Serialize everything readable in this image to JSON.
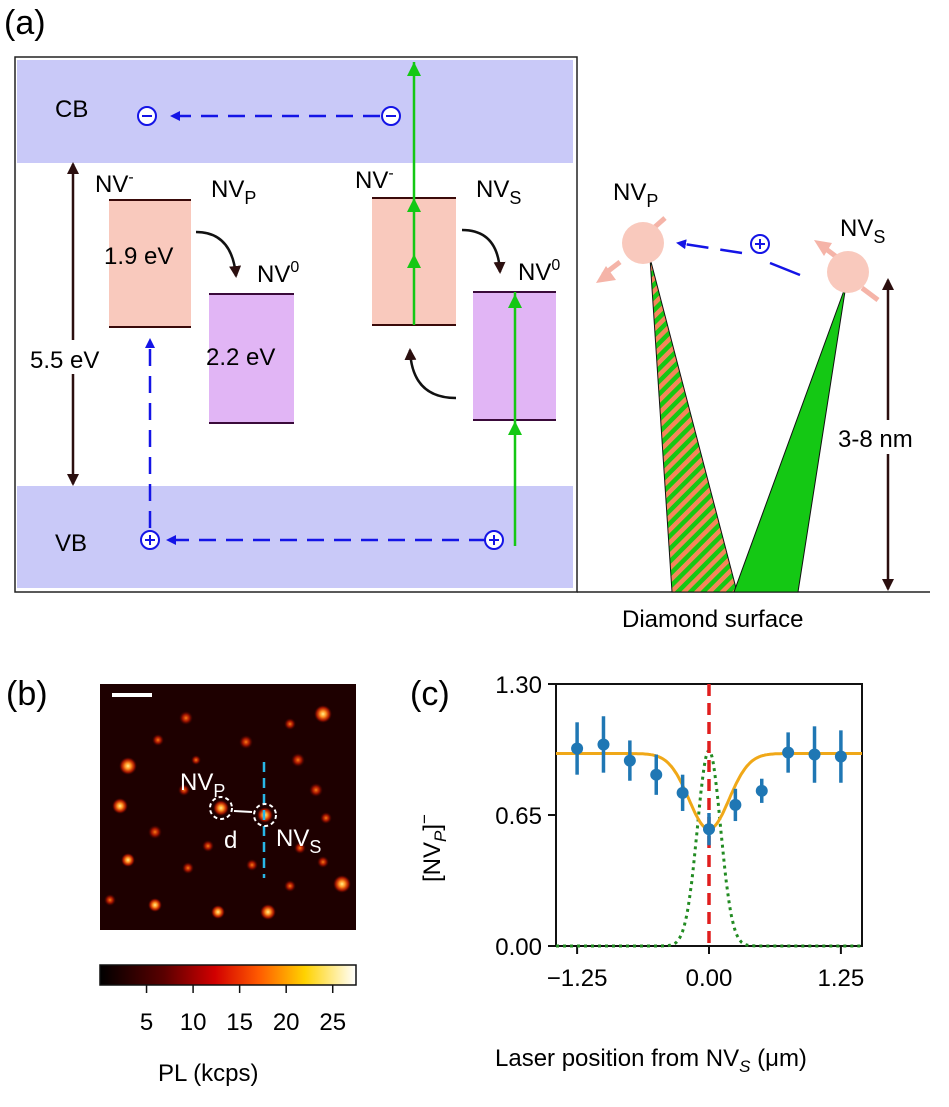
{
  "panel_a": {
    "label": "(a)",
    "cb": "CB",
    "vb": "VB",
    "nv_minus_1": "NV",
    "nv_minus_1_sup": "-",
    "nvp_base": "NV",
    "nvp_sub": "P",
    "e19": "1.9 eV",
    "nv0_1": "NV",
    "nv0_1_sup": "0",
    "e22": "2.2 eV",
    "e55": "5.5 eV",
    "nv_minus_2": "NV",
    "nv_minus_2_sup": "-",
    "nvs_base": "NV",
    "nvs_sub": "S",
    "nv0_2": "NV",
    "nv0_2_sup": "0",
    "right_nvp_base": "NV",
    "right_nvp_sub": "P",
    "right_nvs_base": "NV",
    "right_nvs_sub": "S",
    "depth": "3-8 nm",
    "surface": "Diamond surface",
    "colors": {
      "band": "#c9c9f8",
      "nv_minus": "#f9c9bd",
      "nv_zero": "#e1b5f5",
      "green": "#14c814",
      "blue": "#1414e6",
      "orange": "#f5a06e"
    }
  },
  "panel_b": {
    "label": "(b)",
    "nvp_base": "NV",
    "nvp_sub": "P",
    "d": "d",
    "nvs_base": "NV",
    "nvs_sub": "S",
    "colorbar_ticks": [
      "5",
      "10",
      "15",
      "20",
      "25"
    ],
    "colorbar_label": "PL (kcps)"
  },
  "panel_c": {
    "label": "(c)",
    "xlabel_base": "Laser position from NV",
    "xlabel_sub": "S",
    "xlabel_unit": " (μm)",
    "ylabel_base": "[NV",
    "ylabel_sub": "P",
    "ylabel_sup": "]",
    "ylabel_minus": "−"
  },
  "chart_data": {
    "type": "scatter",
    "title": "",
    "xlabel": "Laser position from NVS (μm)",
    "ylabel": "[NVP]−",
    "xlim": [
      -1.45,
      1.45
    ],
    "ylim": [
      0.0,
      1.3
    ],
    "xticks": [
      -1.25,
      0.0,
      1.25
    ],
    "xtick_labels": [
      "−1.25",
      "0.00",
      "1.25"
    ],
    "yticks": [
      0.0,
      0.65,
      1.3
    ],
    "ytick_labels": [
      "0.00",
      "0.65",
      "1.30"
    ],
    "series": [
      {
        "name": "data",
        "type": "errorbar",
        "color": "#1f77b4",
        "x": [
          -1.25,
          -1.0,
          -0.75,
          -0.5,
          -0.25,
          0.0,
          0.25,
          0.5,
          0.75,
          1.0,
          1.25
        ],
        "y": [
          0.98,
          1.0,
          0.92,
          0.85,
          0.76,
          0.58,
          0.7,
          0.77,
          0.96,
          0.95,
          0.94
        ],
        "yerr": [
          0.13,
          0.14,
          0.1,
          0.1,
          0.09,
          0.08,
          0.08,
          0.06,
          0.1,
          0.14,
          0.13
        ]
      },
      {
        "name": "fit",
        "type": "line",
        "color": "#f0a818",
        "baseline": 0.955,
        "dip_min": 0.58,
        "sigma": 0.19
      },
      {
        "name": "laser profile",
        "type": "dotted-line",
        "color": "#228b22",
        "peak": 0.97,
        "center": 0.0,
        "sigma": 0.11
      },
      {
        "name": "NVS position",
        "type": "vline",
        "color": "#e01e1e",
        "x": 0.0
      }
    ]
  }
}
